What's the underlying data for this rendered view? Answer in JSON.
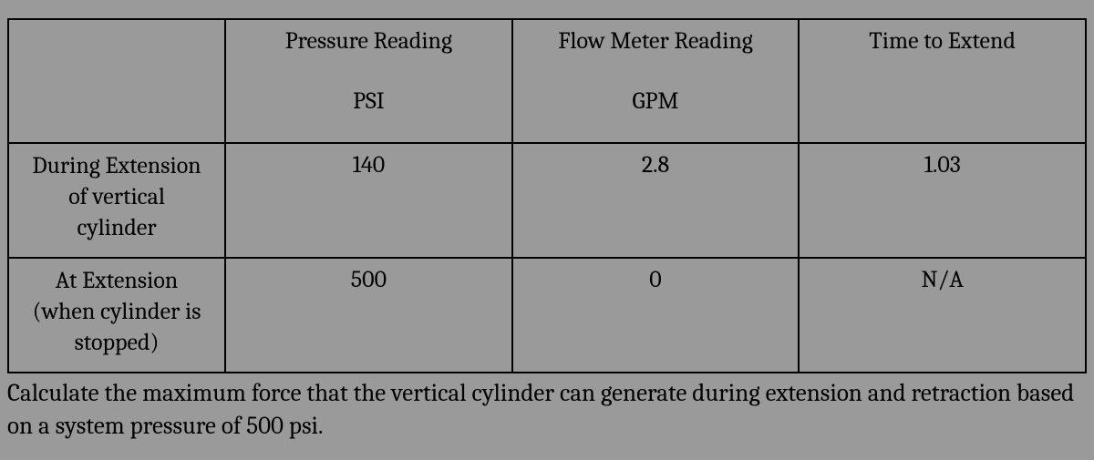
{
  "table": {
    "type": "table",
    "background_color": "#9a9a9a",
    "border_color": "#000000",
    "text_color": "#000000",
    "font_family": "Cambria, Georgia, serif",
    "font_size_pt": 20,
    "columns": [
      {
        "label": "",
        "sub": ""
      },
      {
        "label": "Pressure Reading",
        "sub": "PSI"
      },
      {
        "label": "Flow Meter Reading",
        "sub": "GPM"
      },
      {
        "label": "Time to Extend",
        "sub": ""
      }
    ],
    "rows": [
      {
        "label_lines": [
          "During Extension",
          "of vertical",
          "cylinder"
        ],
        "values": [
          "140",
          "2.8",
          "1.03"
        ]
      },
      {
        "label_lines": [
          "At Extension",
          "(when cylinder is",
          "stopped)"
        ],
        "values": [
          "500",
          "0",
          "N/A"
        ]
      }
    ]
  },
  "caption": "Calculate the maximum force that the vertical cylinder can generate during extension and retraction based on a system pressure of 500 psi."
}
